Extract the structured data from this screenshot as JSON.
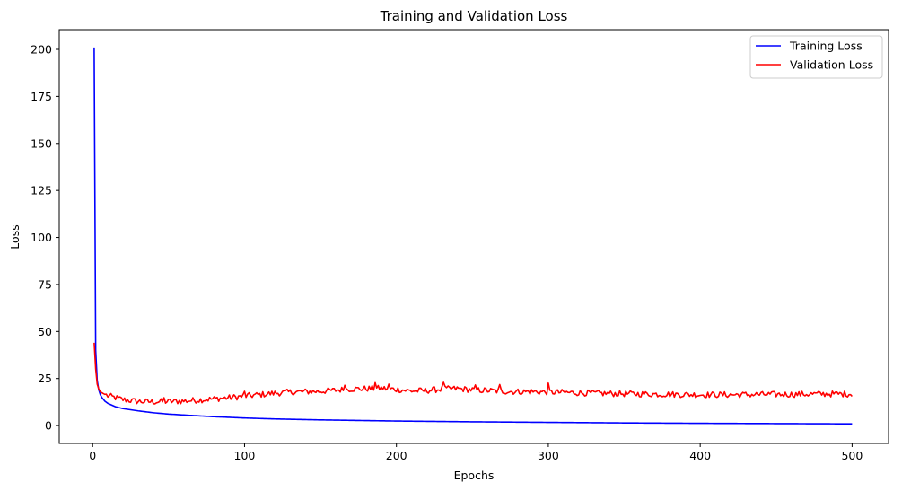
{
  "chart_data": {
    "type": "line",
    "title": "Training and Validation Loss",
    "xlabel": "Epochs",
    "ylabel": "Loss",
    "xlim": [
      -22,
      524
    ],
    "ylim": [
      -9.5,
      210.5
    ],
    "xticks": [
      0,
      100,
      200,
      300,
      400,
      500
    ],
    "yticks": [
      0,
      25,
      50,
      75,
      100,
      125,
      150,
      175,
      200
    ],
    "grid": false,
    "legend_position": "top-right",
    "series": [
      {
        "name": "Training Loss",
        "color": "#0000ff",
        "description": "Rapid decay from ~201 at epoch 1 to ~1 by epoch 500",
        "points": [
          [
            1,
            201
          ],
          [
            2,
            40
          ],
          [
            3,
            24
          ],
          [
            4,
            19
          ],
          [
            5,
            16.5
          ],
          [
            6,
            15
          ],
          [
            8,
            13
          ],
          [
            10,
            11.8
          ],
          [
            15,
            10
          ],
          [
            20,
            9
          ],
          [
            30,
            7.8
          ],
          [
            40,
            6.8
          ],
          [
            50,
            6.1
          ],
          [
            60,
            5.6
          ],
          [
            80,
            4.7
          ],
          [
            100,
            4.0
          ],
          [
            120,
            3.5
          ],
          [
            150,
            3.0
          ],
          [
            200,
            2.4
          ],
          [
            250,
            2.0
          ],
          [
            300,
            1.7
          ],
          [
            350,
            1.4
          ],
          [
            400,
            1.2
          ],
          [
            450,
            1.05
          ],
          [
            500,
            0.9
          ]
        ]
      },
      {
        "name": "Validation Loss",
        "color": "#ff0000",
        "description": "Starts ~44 at epoch 1, dips to ~12.5 around epoch 30-60, rises to ~19-20 near epochs 170-260, settles ~16-17 by epoch 500 with noise",
        "points": [
          [
            1,
            44
          ],
          [
            2,
            30
          ],
          [
            3,
            22
          ],
          [
            4,
            19.5
          ],
          [
            5,
            18
          ],
          [
            7,
            17
          ],
          [
            10,
            15.8
          ],
          [
            15,
            14.8
          ],
          [
            20,
            13.8
          ],
          [
            30,
            12.8
          ],
          [
            40,
            12.6
          ],
          [
            50,
            12.8
          ],
          [
            60,
            13.0
          ],
          [
            70,
            13.6
          ],
          [
            80,
            14.2
          ],
          [
            90,
            14.8
          ],
          [
            100,
            15.6
          ],
          [
            110,
            16.4
          ],
          [
            120,
            17.2
          ],
          [
            130,
            17.8
          ],
          [
            140,
            18.0
          ],
          [
            150,
            18.2
          ],
          [
            160,
            18.8
          ],
          [
            170,
            19.4
          ],
          [
            180,
            19.6
          ],
          [
            190,
            19.8
          ],
          [
            200,
            19.2
          ],
          [
            210,
            18.4
          ],
          [
            220,
            18.6
          ],
          [
            230,
            19.4
          ],
          [
            240,
            19.6
          ],
          [
            250,
            19.0
          ],
          [
            260,
            18.6
          ],
          [
            270,
            18.2
          ],
          [
            280,
            18.0
          ],
          [
            290,
            18.0
          ],
          [
            300,
            17.8
          ],
          [
            320,
            17.4
          ],
          [
            340,
            17.0
          ],
          [
            360,
            16.8
          ],
          [
            380,
            16.6
          ],
          [
            400,
            16.4
          ],
          [
            420,
            16.4
          ],
          [
            440,
            16.5
          ],
          [
            460,
            16.6
          ],
          [
            480,
            16.8
          ],
          [
            500,
            16.8
          ]
        ],
        "noise_amplitude": 1.6,
        "spikes": [
          [
            47,
            14.8
          ],
          [
            100,
            18.2
          ],
          [
            166,
            21.4
          ],
          [
            186,
            22.8
          ],
          [
            195,
            22.0
          ],
          [
            231,
            23.0
          ],
          [
            252,
            21.6
          ],
          [
            268,
            21.8
          ],
          [
            300,
            22.6
          ]
        ]
      }
    ]
  }
}
